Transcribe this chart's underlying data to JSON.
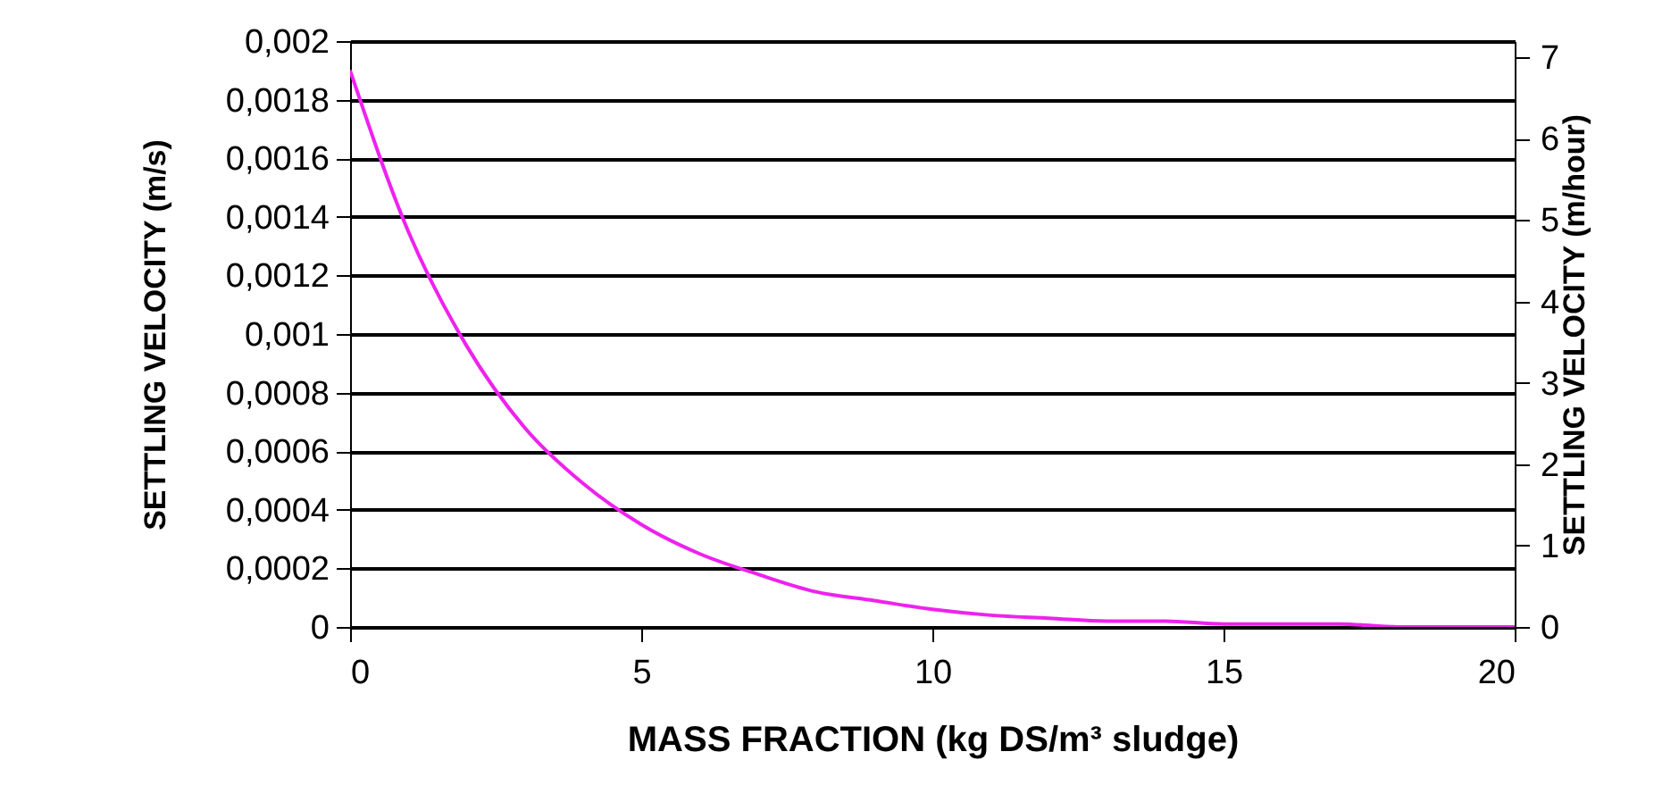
{
  "chart_data": {
    "type": "line",
    "xlabel": "MASS FRACTION (kg DS/m³ sludge)",
    "ylabel": "SETTLING VELOCITY  (m/s)",
    "y2label": "SETTLING VELOCITY  (m/hour)",
    "x": [
      0,
      1,
      2,
      3,
      4,
      5,
      6,
      7,
      8,
      9,
      10,
      11,
      12,
      13,
      14,
      15,
      16,
      17,
      18,
      19,
      20
    ],
    "series": [
      {
        "color": "#ee22ee",
        "values": [
          0.0019,
          0.00135,
          0.00096,
          0.00068,
          0.00049,
          0.00035,
          0.00025,
          0.00018,
          0.00012,
          9e-05,
          6e-05,
          4e-05,
          3e-05,
          2e-05,
          2e-05,
          1e-05,
          1e-05,
          1e-05,
          0,
          0,
          0
        ]
      }
    ],
    "xlim": [
      0,
      20
    ],
    "xticks": [
      0,
      5,
      10,
      15,
      20
    ],
    "ylim": [
      0,
      0.002
    ],
    "yticks": [
      0,
      {
        "value": 0.0002,
        "label": "0,0002"
      },
      {
        "value": 0.0004,
        "label": "0,0004"
      },
      {
        "value": 0.0006,
        "label": "0,0006"
      },
      {
        "value": 0.0008,
        "label": "0,0008"
      },
      {
        "value": 0.001,
        "label": "0,001"
      },
      {
        "value": 0.0012,
        "label": "0,0012"
      },
      {
        "value": 0.0014,
        "label": "0,0014"
      },
      {
        "value": 0.0016,
        "label": "0,0016"
      },
      {
        "value": 0.0018,
        "label": "0,0018"
      },
      {
        "value": 0.002,
        "label": "0,002"
      }
    ],
    "y2lim": [
      0,
      7.2
    ],
    "y2ticks": [
      0,
      1,
      2,
      3,
      4,
      5,
      6,
      7
    ],
    "grid": "y",
    "marker": "none",
    "line_style": "solid"
  }
}
